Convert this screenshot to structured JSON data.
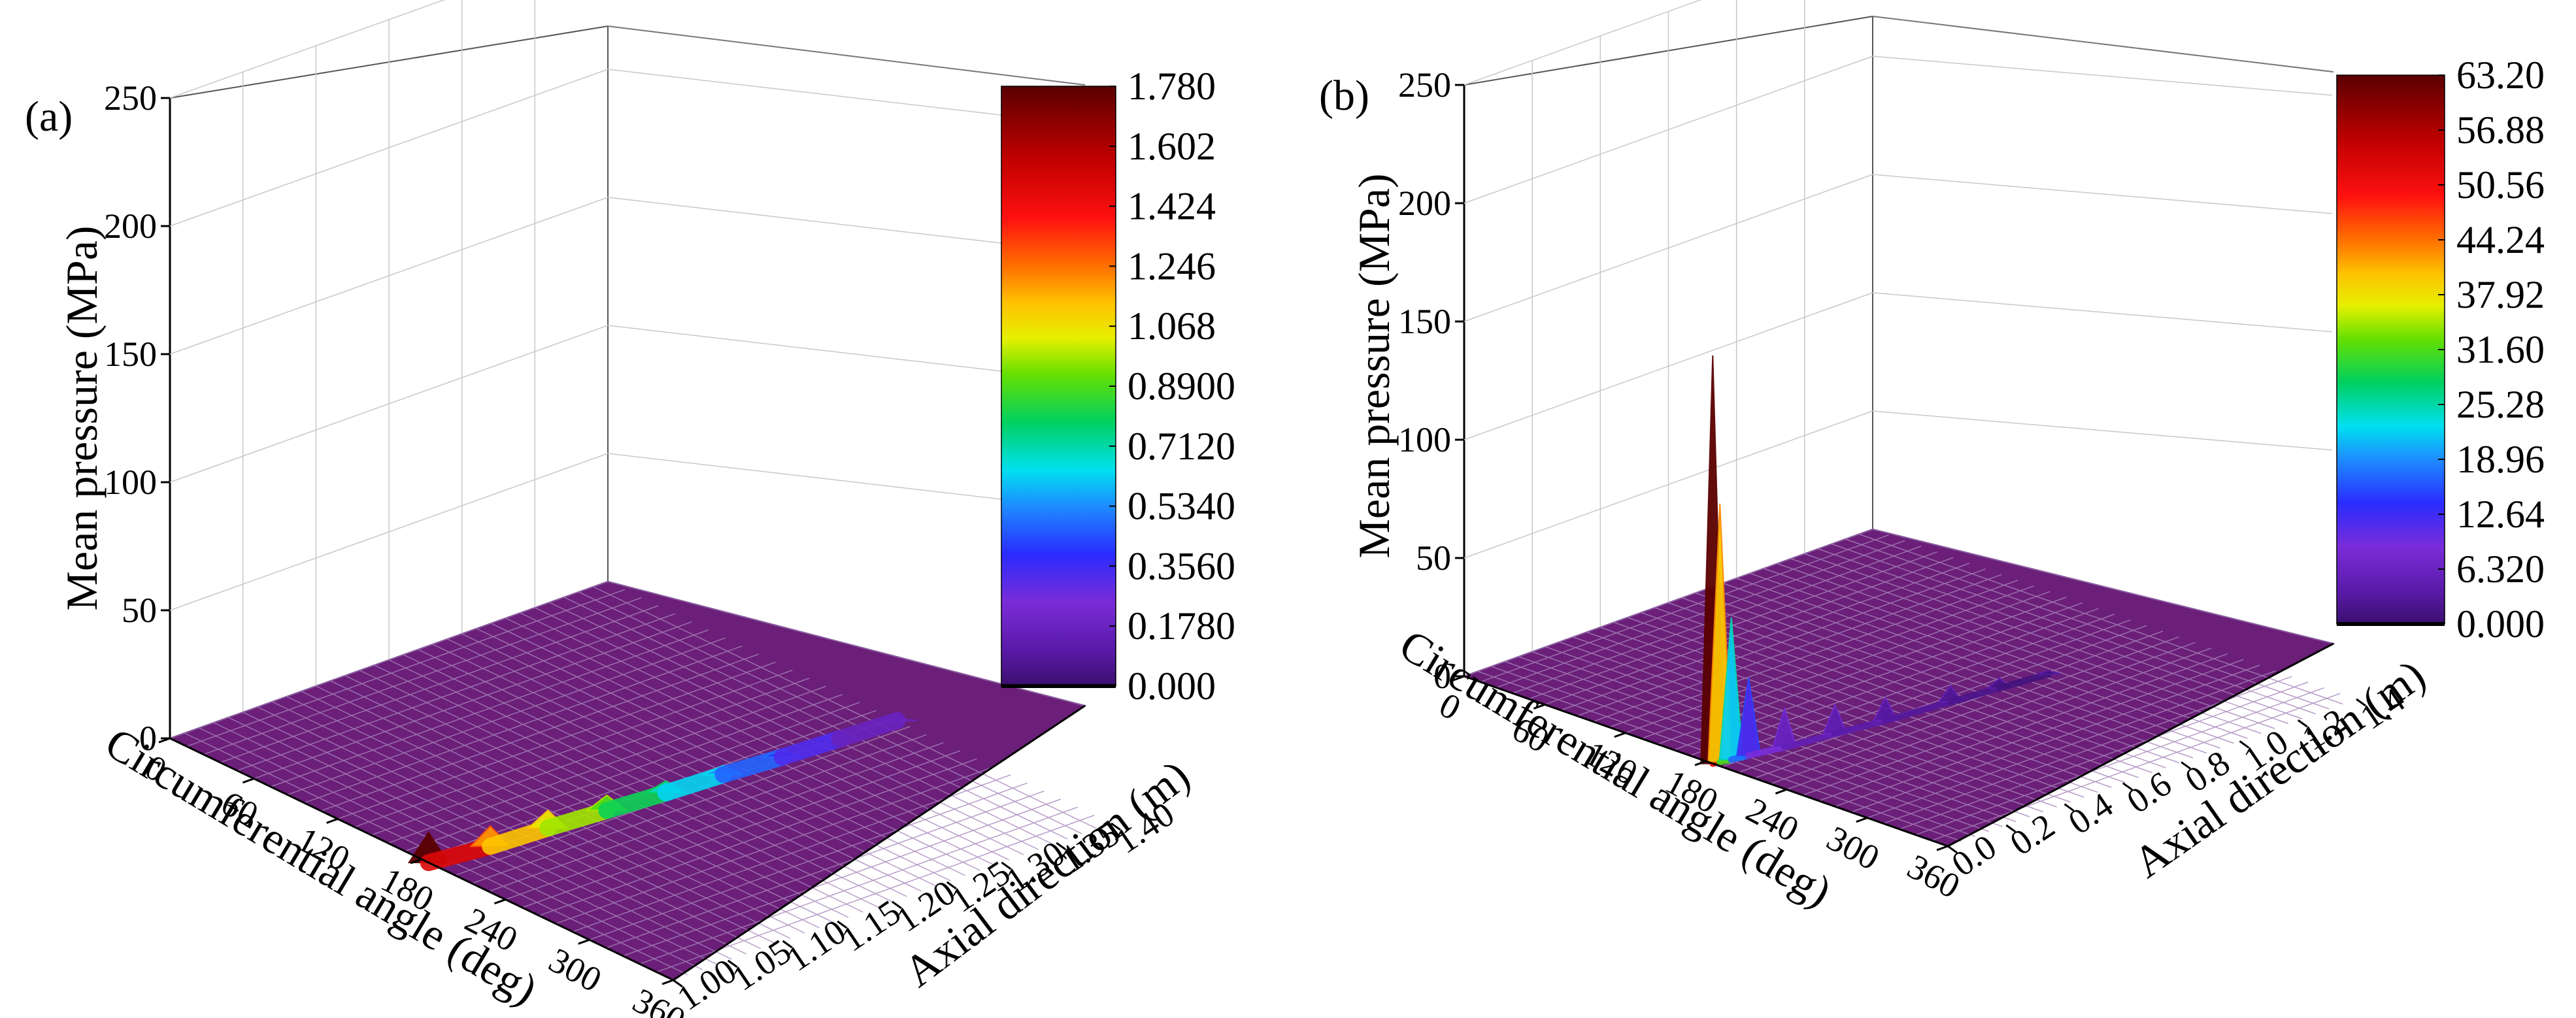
{
  "chart_data": [
    {
      "type": "surface3d",
      "panel_label": "(a)",
      "zlabel": "Mean pressure (MPa)",
      "xlabel": "Circumferential angle (deg)",
      "ylabel": "Axial direction (m)",
      "x_ticks": [
        "0",
        "60",
        "120",
        "180",
        "240",
        "300",
        "360"
      ],
      "y_ticks": [
        "1.00",
        "1.05",
        "1.10",
        "1.15",
        "1.20",
        "1.25",
        "1.30",
        "1.35",
        "1.40"
      ],
      "z_ticks": [
        "0",
        "50",
        "100",
        "150",
        "200",
        "250"
      ],
      "xlim": [
        0,
        360
      ],
      "ylim": [
        1.0,
        1.4
      ],
      "zlim": [
        0,
        250
      ],
      "colorbar": {
        "min": 0,
        "max": 1.78,
        "ticks": [
          "1.780",
          "1.602",
          "1.424",
          "1.246",
          "1.068",
          "0.8900",
          "0.7120",
          "0.5340",
          "0.3560",
          "0.1780",
          "0.000"
        ]
      },
      "peak": {
        "x": 185,
        "y": 1.0,
        "z": 1.78
      },
      "ridge": [
        {
          "x": 185,
          "y": 1.0,
          "z": 1.78
        },
        {
          "x": 190,
          "y": 1.05,
          "z": 1.2
        },
        {
          "x": 192,
          "y": 1.1,
          "z": 1.05
        },
        {
          "x": 195,
          "y": 1.15,
          "z": 0.9
        },
        {
          "x": 198,
          "y": 1.2,
          "z": 0.7
        },
        {
          "x": 200,
          "y": 1.25,
          "z": 0.55
        },
        {
          "x": 203,
          "y": 1.3,
          "z": 0.4
        },
        {
          "x": 205,
          "y": 1.35,
          "z": 0.25
        },
        {
          "x": 207,
          "y": 1.4,
          "z": 0.1
        }
      ],
      "grid": true
    },
    {
      "type": "surface3d",
      "panel_label": "(b)",
      "zlabel": "Mean pressure (MPa)",
      "xlabel": "Circumferential angle (deg)",
      "ylabel": "Axial direction (m)",
      "x_ticks": [
        "0",
        "60",
        "120",
        "180",
        "240",
        "300",
        "360"
      ],
      "y_ticks": [
        "0.0",
        "0.2",
        "0.4",
        "0.6",
        "0.8",
        "1.0",
        "1.2",
        "1.4"
      ],
      "z_ticks": [
        "0",
        "50",
        "100",
        "150",
        "200",
        "250"
      ],
      "xlim": [
        0,
        360
      ],
      "ylim": [
        0,
        1.4
      ],
      "zlim": [
        0,
        250
      ],
      "colorbar": {
        "min": 0,
        "max": 63.2,
        "ticks": [
          "63.20",
          "56.88",
          "50.56",
          "44.24",
          "37.92",
          "31.60",
          "25.28",
          "18.96",
          "12.64",
          "6.320",
          "0.000"
        ]
      },
      "peak": {
        "x": 185,
        "y": 0.0,
        "z": 63.2
      },
      "ridge": [
        {
          "x": 185,
          "y": 0.0,
          "z": 63.2
        },
        {
          "x": 186,
          "y": 0.02,
          "z": 40.0
        },
        {
          "x": 188,
          "y": 0.05,
          "z": 22.0
        },
        {
          "x": 190,
          "y": 0.1,
          "z": 12.0
        },
        {
          "x": 195,
          "y": 0.2,
          "z": 6.0
        },
        {
          "x": 200,
          "y": 0.35,
          "z": 4.5
        },
        {
          "x": 205,
          "y": 0.5,
          "z": 3.5
        },
        {
          "x": 210,
          "y": 0.7,
          "z": 2.5
        },
        {
          "x": 214,
          "y": 0.85,
          "z": 1.5
        },
        {
          "x": 218,
          "y": 1.0,
          "z": 0.5
        }
      ],
      "grid": true
    }
  ]
}
